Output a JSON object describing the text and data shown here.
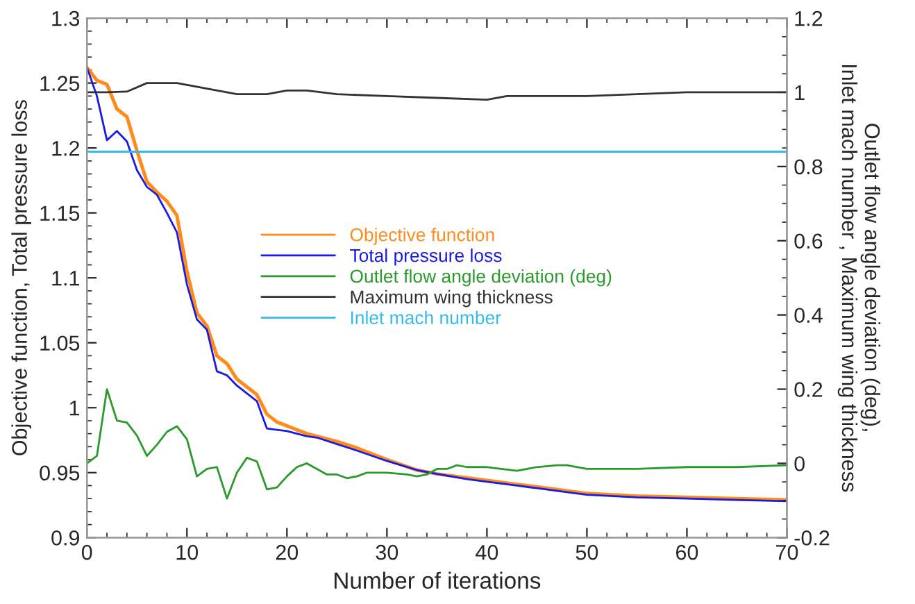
{
  "chart_data": {
    "type": "line",
    "xlabel": "Number of iterations",
    "ylabel": "Objective function, Total pressure loss",
    "y2label": "Outlet flow angle deviation (deg),\nInlet mach number , Maximum wing thickness",
    "xlim": [
      0,
      70
    ],
    "xticks": [
      0,
      10,
      20,
      30,
      40,
      50,
      60,
      70
    ],
    "ylim": [
      0.9,
      1.3
    ],
    "yticks": [
      0.9,
      0.95,
      1,
      1.05,
      1.1,
      1.15,
      1.2,
      1.25,
      1.3
    ],
    "y2lim": [
      -0.2,
      1.2
    ],
    "y2ticks": [
      -0.2,
      0,
      0.2,
      0.4,
      0.6,
      0.8,
      1,
      1.2
    ],
    "grid": false,
    "legend": "center",
    "marker": "none",
    "line_style": "solid",
    "series": [
      {
        "name": "Objective function",
        "color": "#ff8c1a",
        "x": [
          0,
          1,
          2,
          3,
          4,
          5,
          6,
          7,
          8,
          9,
          10,
          11,
          12,
          13,
          14,
          15,
          16,
          17,
          18,
          19,
          20,
          21,
          22,
          23,
          25,
          27,
          30,
          33,
          35,
          38,
          40,
          43,
          45,
          48,
          50,
          55,
          60,
          65,
          70
        ],
        "values": [
          1.262,
          1.252,
          1.249,
          1.23,
          1.224,
          1.198,
          1.174,
          1.166,
          1.159,
          1.148,
          1.105,
          1.073,
          1.063,
          1.04,
          1.034,
          1.022,
          1.016,
          1.01,
          0.995,
          0.989,
          0.986,
          0.983,
          0.98,
          0.978,
          0.974,
          0.969,
          0.96,
          0.952,
          0.949,
          0.946,
          0.944,
          0.941,
          0.939,
          0.936,
          0.934,
          0.932,
          0.931,
          0.93,
          0.929
        ]
      },
      {
        "name": "Total pressure loss",
        "color": "#1a1ae6",
        "x": [
          0,
          1,
          2,
          3,
          4,
          5,
          6,
          7,
          8,
          9,
          10,
          11,
          12,
          13,
          14,
          15,
          16,
          17,
          18,
          19,
          20,
          21,
          22,
          23,
          25,
          27,
          30,
          33,
          35,
          38,
          40,
          43,
          45,
          48,
          50,
          55,
          60,
          65,
          70
        ],
        "values": [
          1.262,
          1.24,
          1.206,
          1.213,
          1.205,
          1.183,
          1.17,
          1.164,
          1.15,
          1.135,
          1.095,
          1.068,
          1.06,
          1.028,
          1.025,
          1.017,
          1.011,
          1.005,
          0.984,
          0.983,
          0.982,
          0.98,
          0.978,
          0.977,
          0.972,
          0.967,
          0.959,
          0.952,
          0.949,
          0.945,
          0.943,
          0.94,
          0.938,
          0.935,
          0.933,
          0.931,
          0.93,
          0.929,
          0.928
        ]
      },
      {
        "name": "Outlet flow angle deviation (deg)",
        "color": "#2a9a2a",
        "axis": "y2",
        "x": [
          0,
          1,
          2,
          3,
          4,
          5,
          6,
          7,
          8,
          9,
          10,
          11,
          12,
          13,
          14,
          15,
          16,
          17,
          18,
          19,
          20,
          21,
          22,
          23,
          24,
          25,
          26,
          27,
          28,
          30,
          32,
          33,
          34,
          35,
          36,
          37,
          38,
          40,
          43,
          45,
          47,
          48,
          50,
          55,
          60,
          65,
          70
        ],
        "values": [
          0.0,
          0.02,
          0.2,
          0.115,
          0.11,
          0.075,
          0.02,
          0.05,
          0.085,
          0.1,
          0.065,
          -0.035,
          -0.015,
          -0.01,
          -0.095,
          -0.025,
          0.015,
          0.005,
          -0.07,
          -0.065,
          -0.035,
          -0.01,
          0.0,
          -0.015,
          -0.03,
          -0.03,
          -0.04,
          -0.035,
          -0.025,
          -0.025,
          -0.03,
          -0.035,
          -0.03,
          -0.015,
          -0.015,
          -0.005,
          -0.01,
          -0.01,
          -0.02,
          -0.01,
          -0.005,
          -0.005,
          -0.015,
          -0.015,
          -0.01,
          -0.01,
          -0.005
        ]
      },
      {
        "name": "Maximum wing thickness",
        "color": "#333333",
        "axis": "y2",
        "x": [
          0,
          2,
          4,
          6,
          9,
          12,
          15,
          18,
          20,
          22,
          25,
          30,
          35,
          40,
          42,
          50,
          55,
          60,
          70
        ],
        "values": [
          1.0,
          1.0,
          1.002,
          1.025,
          1.025,
          1.01,
          0.995,
          0.995,
          1.005,
          1.005,
          0.995,
          0.99,
          0.985,
          0.98,
          0.99,
          0.99,
          0.995,
          1.0,
          1.0
        ]
      },
      {
        "name": "Inlet mach number",
        "color": "#33bbee",
        "axis": "y2",
        "x": [
          0,
          70
        ],
        "values": [
          0.84,
          0.84
        ]
      }
    ]
  }
}
